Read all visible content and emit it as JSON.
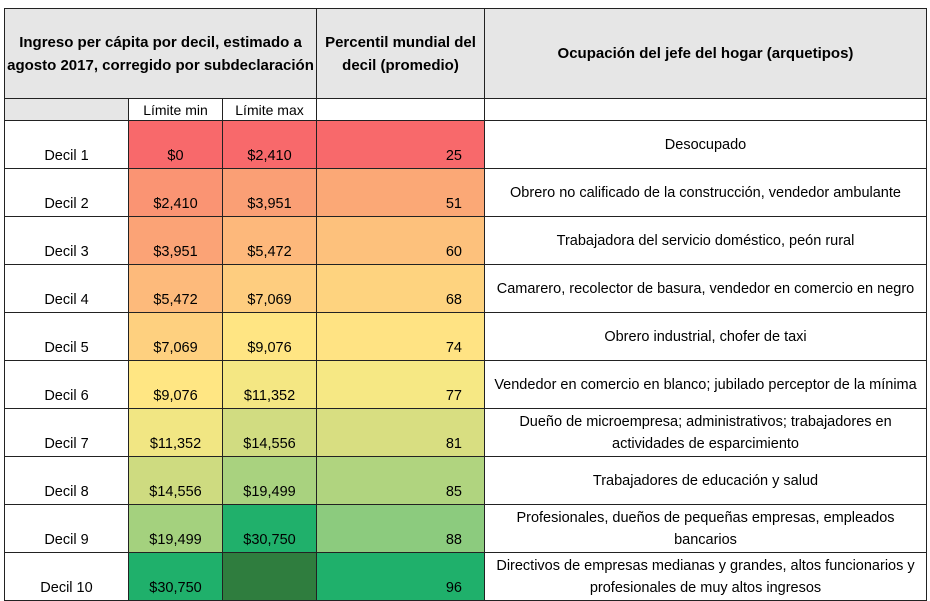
{
  "headers": {
    "income": "Ingreso per cápita por decil, estimado a agosto 2017, corregido por subdeclaración",
    "percentile": "Percentil mundial del decil (promedio)",
    "occupation": "Ocupación del jefe del hogar (arquetipos)",
    "min_label": "Límite min",
    "max_label": "Límite max"
  },
  "rows": [
    {
      "decil": "Decil 1",
      "min": "$0",
      "max": "$2,410",
      "percentile": "25",
      "occupation": "Desocupado",
      "colors": {
        "min": "#f8696b",
        "max": "#f8696b",
        "pct": "#f8696b"
      }
    },
    {
      "decil": "Decil 2",
      "min": "$2,410",
      "max": "$3,951",
      "percentile": "51",
      "occupation": "Obrero no calificado de la construcción, vendedor ambulante",
      "colors": {
        "min": "#fa9473",
        "max": "#fa9f75",
        "pct": "#fba876"
      }
    },
    {
      "decil": "Decil 3",
      "min": "$3,951",
      "max": "$5,472",
      "percentile": "60",
      "occupation": "Trabajadora del servicio doméstico, peón rural",
      "colors": {
        "min": "#fba376",
        "max": "#fdb87b",
        "pct": "#fdc17c"
      }
    },
    {
      "decil": "Decil 4",
      "min": "$5,472",
      "max": "$7,069",
      "percentile": "68",
      "occupation": "Camarero, recolector de basura, vendedor en comercio en negro",
      "colors": {
        "min": "#fdba7b",
        "max": "#fecd7f",
        "pct": "#fed37f"
      }
    },
    {
      "decil": "Decil 5",
      "min": "$7,069",
      "max": "$9,076",
      "percentile": "74",
      "occupation": "Obrero industrial, chofer de taxi",
      "colors": {
        "min": "#fed07f",
        "max": "#ffe583",
        "pct": "#ffe383"
      }
    },
    {
      "decil": "Decil 6",
      "min": "$9,076",
      "max": "$11,352",
      "percentile": "77",
      "occupation": "Vendedor en comercio en blanco; jubilado perceptor de la mínima",
      "colors": {
        "min": "#ffe683",
        "max": "#f4e783",
        "pct": "#f6e884"
      }
    },
    {
      "decil": "Decil 7",
      "min": "$11,352",
      "max": "$14,556",
      "percentile": "81",
      "occupation": "Dueño de microempresa; administrativos; trabajadores en actividades de esparcimiento",
      "colors": {
        "min": "#f1e683",
        "max": "#d1dc81",
        "pct": "#d8de81"
      }
    },
    {
      "decil": "Decil 8",
      "min": "$14,556",
      "max": "$19,499",
      "percentile": "85",
      "occupation": "Trabajadores de educación y salud",
      "colors": {
        "min": "#cedb80",
        "max": "#a9d27f",
        "pct": "#b0d47f"
      }
    },
    {
      "decil": "Decil 9",
      "min": "$19,499",
      "max": "$30,750",
      "percentile": "88",
      "occupation": "Profesionales, dueños de pequeñas empresas, empleados bancarios",
      "colors": {
        "min": "#a4d17e",
        "max": "#20b06b",
        "pct": "#8ccb7e"
      }
    },
    {
      "decil": "Decil 10",
      "min": "$30,750",
      "max": "",
      "percentile": "96",
      "occupation": "Directivos de empresas medianas y grandes, altos funcionarios y profesionales de muy altos ingresos",
      "colors": {
        "min": "#1fb06b",
        "max": "#2f7d3e",
        "pct": "#1fb06b"
      }
    }
  ]
}
